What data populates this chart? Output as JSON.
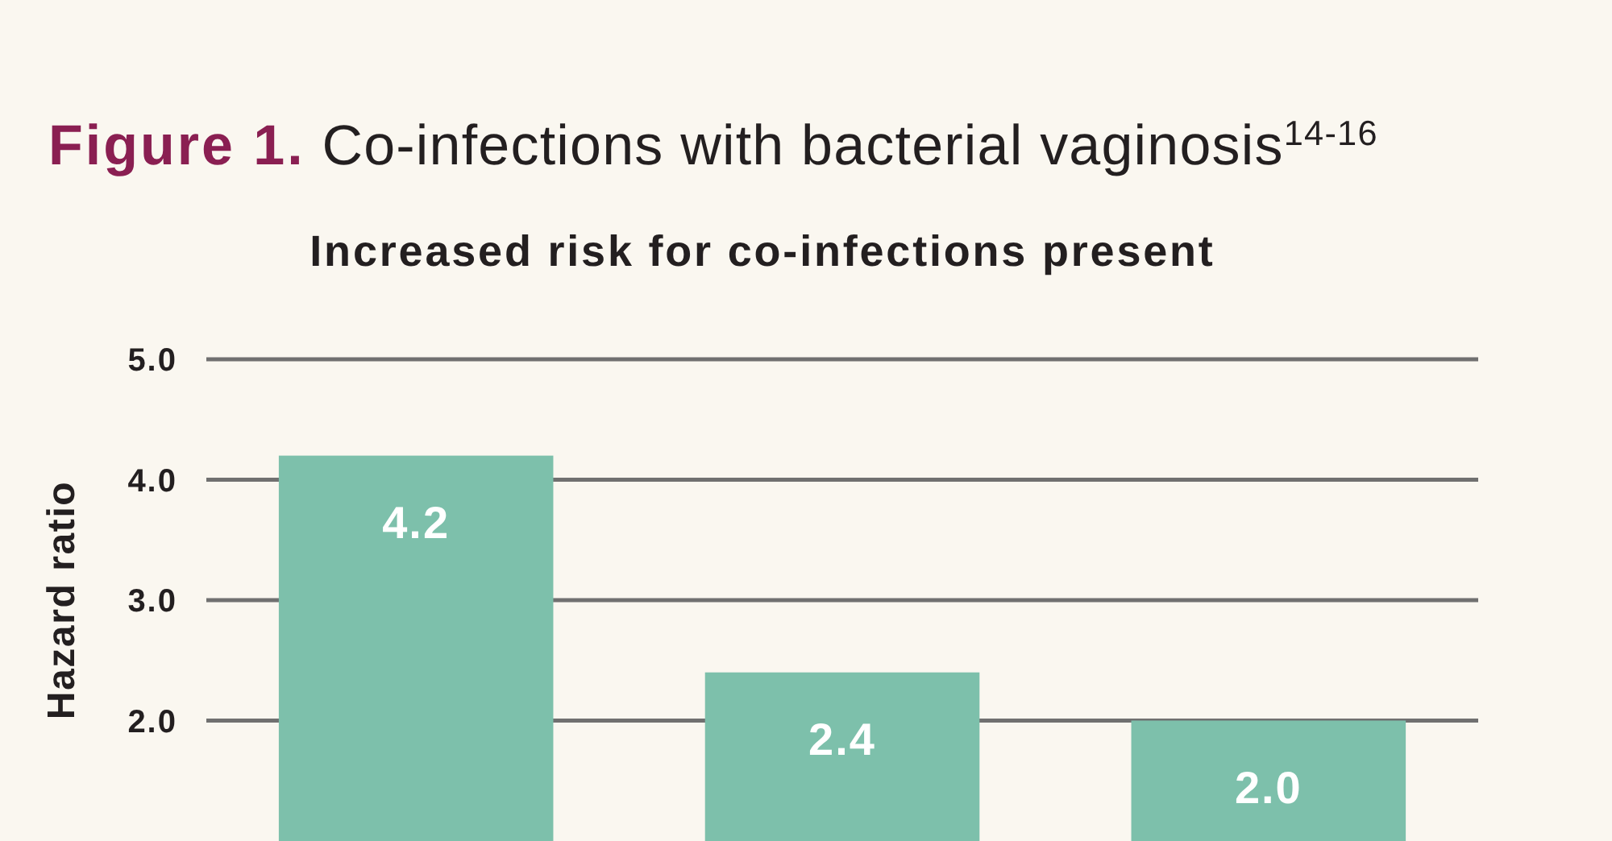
{
  "chart_data": {
    "type": "bar",
    "title": "Figure 1. Co-infections with bacterial vaginosis$^{14-16}$",
    "subtitle": "Increased risk for co-infections present",
    "ylabel": "Hazard ratio",
    "categories": [
      null,
      null,
      null
    ],
    "values": [
      4.2,
      2.4,
      2.0
    ],
    "value_labels": [
      "4.2",
      "2.4",
      "2.0"
    ],
    "color": "#7dc0ab",
    "ylim": [
      1,
      5
    ],
    "yticks": [
      {
        "value": 2,
        "label": "2.0"
      },
      {
        "value": 3,
        "label": "3.0"
      },
      {
        "value": 4,
        "label": "4.0"
      },
      {
        "value": 5,
        "label": "5.0"
      }
    ],
    "grid": "y"
  }
}
